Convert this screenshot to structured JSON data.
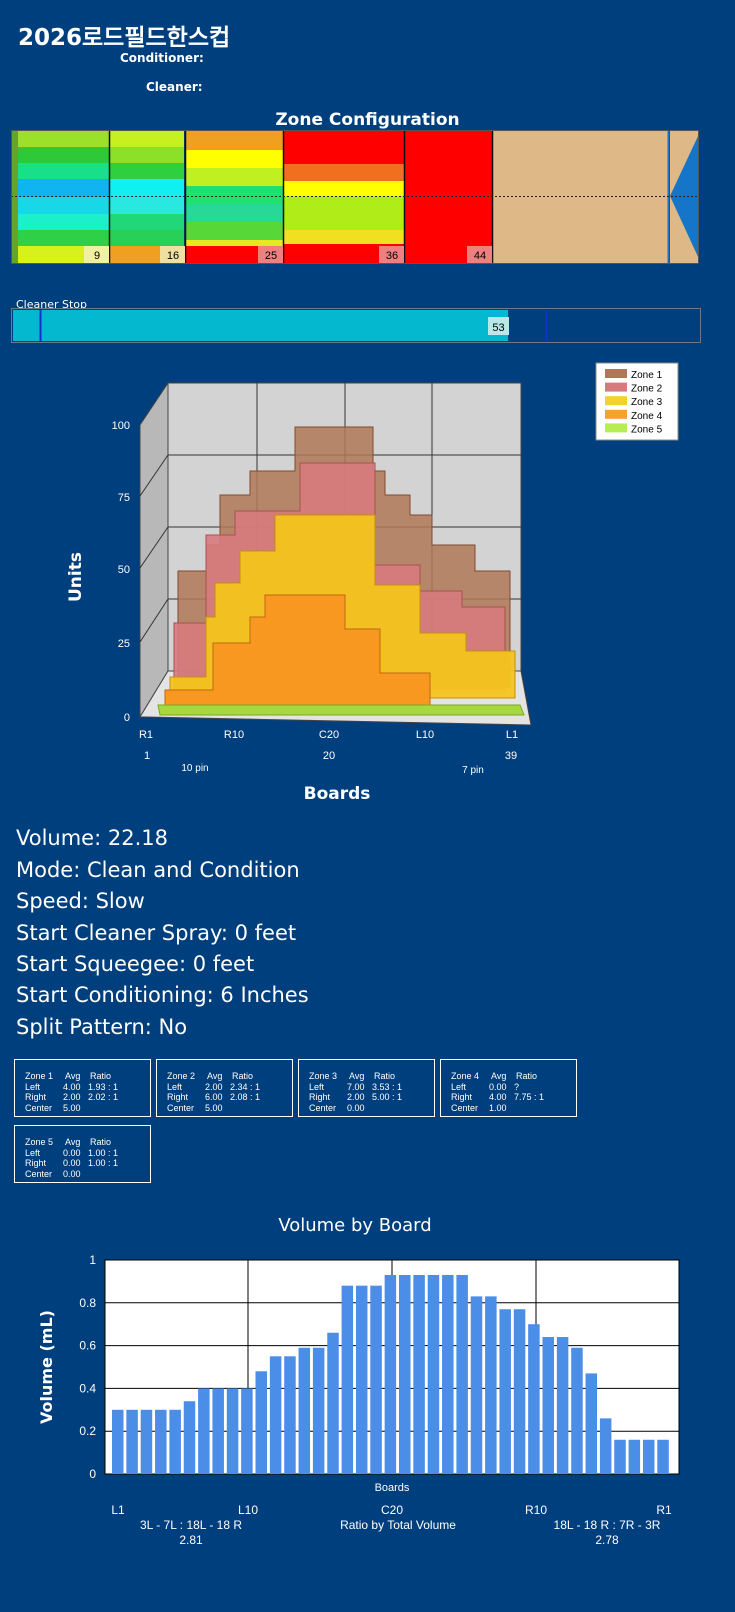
{
  "header": {
    "title": "2026로드필드한스컵",
    "conditioner_label": "Conditioner:",
    "cleaner_label": "Cleaner:"
  },
  "zone_config": {
    "title": "Zone Configuration",
    "markers": [
      "9",
      "16",
      "25",
      "36",
      "44"
    ]
  },
  "cleaner_stop": {
    "label": "Cleaner Stop",
    "value": "53",
    "fill_fraction": 0.82
  },
  "chart3d": {
    "y_title": "Units",
    "x_title": "Boards",
    "y_ticks": [
      "100",
      "75",
      "50",
      "25",
      "0"
    ],
    "x_ticks": [
      "R1",
      "R10",
      "C20",
      "L10",
      "L1"
    ],
    "x_sub_ticks": [
      "1",
      "20",
      "39"
    ],
    "pin_labels": [
      "10 pin",
      "7 pin"
    ],
    "legend": [
      {
        "name": "Zone 1",
        "color": "#b07858"
      },
      {
        "name": "Zone 2",
        "color": "#d77a7e"
      },
      {
        "name": "Zone 3",
        "color": "#f4d22c"
      },
      {
        "name": "Zone 4",
        "color": "#f8a030"
      },
      {
        "name": "Zone 5",
        "color": "#b4ee52"
      }
    ]
  },
  "info": {
    "volume": "Volume: 22.18",
    "mode": "Mode: Clean and Condition",
    "speed": "Speed: Slow",
    "start_cleaner_spray": "Start Cleaner Spray: 0 feet",
    "start_squeegee": "Start Squeegee: 0 feet",
    "start_conditioning": "Start Conditioning: 6 Inches",
    "split_pattern": "Split Pattern: No"
  },
  "zones": [
    {
      "name": "Zone 1",
      "avg_h": "Avg",
      "ratio_h": "Ratio",
      "left": "4.00",
      "left_ratio": "1.93 : 1",
      "right": "2.00",
      "right_ratio": "2.02 : 1",
      "center": "5.00"
    },
    {
      "name": "Zone 2",
      "avg_h": "Avg",
      "ratio_h": "Ratio",
      "left": "2.00",
      "left_ratio": "2.34 : 1",
      "right": "6.00",
      "right_ratio": "2.08 : 1",
      "center": "5.00"
    },
    {
      "name": "Zone 3",
      "avg_h": "Avg",
      "ratio_h": "Ratio",
      "left": "7.00",
      "left_ratio": "3.53 : 1",
      "right": "2.00",
      "right_ratio": "5.00 : 1",
      "center": "0.00"
    },
    {
      "name": "Zone 4",
      "avg_h": "Avg",
      "ratio_h": "Ratio",
      "left": "0.00",
      "left_ratio": "?",
      "right": "4.00",
      "right_ratio": "7.75 : 1",
      "center": "1.00"
    },
    {
      "name": "Zone 5",
      "avg_h": "Avg",
      "ratio_h": "Ratio",
      "left": "0.00",
      "left_ratio": "1.00 : 1",
      "right": "0.00",
      "right_ratio": "1.00 : 1",
      "center": "0.00"
    }
  ],
  "zone_row_labels": {
    "left": "Left",
    "right": "Right",
    "center": "Center"
  },
  "chart_data": {
    "type": "bar",
    "title": "Volume by Board",
    "xlabel": "Boards",
    "ylabel": "Volume (mL)",
    "ylim": [
      0,
      1
    ],
    "y_ticks": [
      "0",
      "0.2",
      "0.4",
      "0.6",
      "0.8",
      "1"
    ],
    "x_ticks": [
      "L1",
      "L10",
      "C20",
      "R10",
      "R1"
    ],
    "grid": true,
    "categories": [
      "1",
      "2",
      "3",
      "4",
      "5",
      "6",
      "7",
      "8",
      "9",
      "10",
      "11",
      "12",
      "13",
      "14",
      "15",
      "16",
      "17",
      "18",
      "19",
      "20",
      "21",
      "22",
      "23",
      "24",
      "25",
      "26",
      "27",
      "28",
      "29",
      "30",
      "31",
      "32",
      "33",
      "34",
      "35",
      "36",
      "37",
      "38",
      "39"
    ],
    "values": [
      0.3,
      0.3,
      0.3,
      0.3,
      0.3,
      0.34,
      0.4,
      0.4,
      0.4,
      0.4,
      0.48,
      0.55,
      0.55,
      0.59,
      0.59,
      0.66,
      0.88,
      0.88,
      0.88,
      0.93,
      0.93,
      0.93,
      0.93,
      0.93,
      0.93,
      0.83,
      0.83,
      0.77,
      0.77,
      0.7,
      0.64,
      0.64,
      0.59,
      0.47,
      0.26,
      0.16,
      0.16,
      0.16,
      0.16
    ],
    "ratio_left_label": "3L - 7L : 18L - 18 R",
    "ratio_left_value": "2.81",
    "ratio_center_label": "Ratio by Total Volume",
    "ratio_right_label": "18L - 18 R : 7R - 3R",
    "ratio_right_value": "2.78"
  }
}
